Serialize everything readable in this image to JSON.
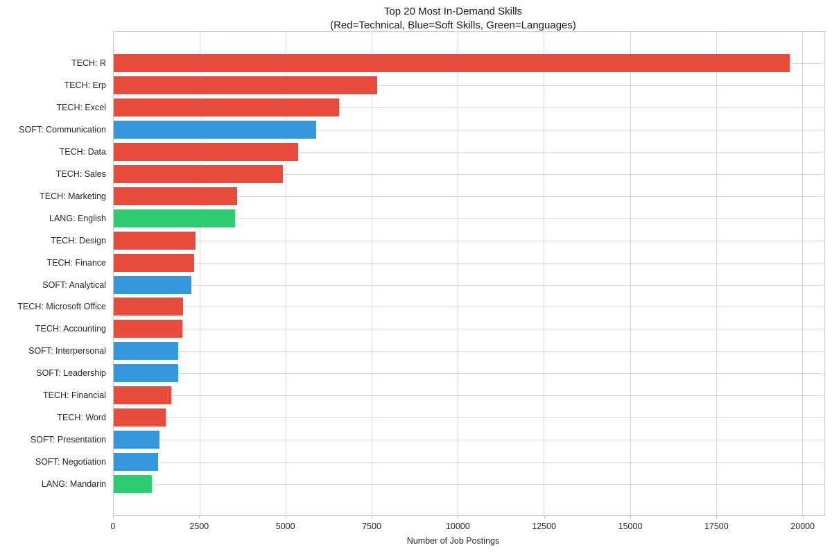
{
  "chart_data": {
    "type": "bar",
    "orientation": "horizontal",
    "title": "Top 20 Most In-Demand Skills",
    "subtitle": "(Red=Technical, Blue=Soft Skills, Green=Languages)",
    "xlabel": "Number of Job Postings",
    "xlim": [
      0,
      20650
    ],
    "xticks": [
      0,
      2500,
      5000,
      7500,
      10000,
      12500,
      15000,
      17500,
      20000
    ],
    "grid": true,
    "group_colors": {
      "TECH": "#e74c3c",
      "SOFT": "#3498db",
      "LANG": "#2ecc71"
    },
    "group_meanings": {
      "TECH": "Technical",
      "SOFT": "Soft Skills",
      "LANG": "Languages"
    },
    "bars": [
      {
        "label": "TECH: R",
        "group": "TECH",
        "value": 19650
      },
      {
        "label": "TECH: Erp",
        "group": "TECH",
        "value": 7650
      },
      {
        "label": "TECH: Excel",
        "group": "TECH",
        "value": 6540
      },
      {
        "label": "SOFT: Communication",
        "group": "SOFT",
        "value": 5880
      },
      {
        "label": "TECH: Data",
        "group": "TECH",
        "value": 5350
      },
      {
        "label": "TECH: Sales",
        "group": "TECH",
        "value": 4910
      },
      {
        "label": "TECH: Marketing",
        "group": "TECH",
        "value": 3580
      },
      {
        "label": "LANG: English",
        "group": "LANG",
        "value": 3520
      },
      {
        "label": "TECH: Design",
        "group": "TECH",
        "value": 2370
      },
      {
        "label": "TECH: Finance",
        "group": "TECH",
        "value": 2330
      },
      {
        "label": "SOFT: Analytical",
        "group": "SOFT",
        "value": 2250
      },
      {
        "label": "TECH: Microsoft Office",
        "group": "TECH",
        "value": 2010
      },
      {
        "label": "TECH: Accounting",
        "group": "TECH",
        "value": 1990
      },
      {
        "label": "SOFT: Interpersonal",
        "group": "SOFT",
        "value": 1870
      },
      {
        "label": "SOFT: Leadership",
        "group": "SOFT",
        "value": 1865
      },
      {
        "label": "TECH: Financial",
        "group": "TECH",
        "value": 1670
      },
      {
        "label": "TECH: Word",
        "group": "TECH",
        "value": 1510
      },
      {
        "label": "SOFT: Presentation",
        "group": "SOFT",
        "value": 1330
      },
      {
        "label": "SOFT: Negotiation",
        "group": "SOFT",
        "value": 1290
      },
      {
        "label": "LANG: Mandarin",
        "group": "LANG",
        "value": 1110
      }
    ]
  },
  "style_colors": {
    "grid": "#dcdcdc",
    "spine": "#cccccc",
    "text": "#262626",
    "background": "#ffffff"
  }
}
